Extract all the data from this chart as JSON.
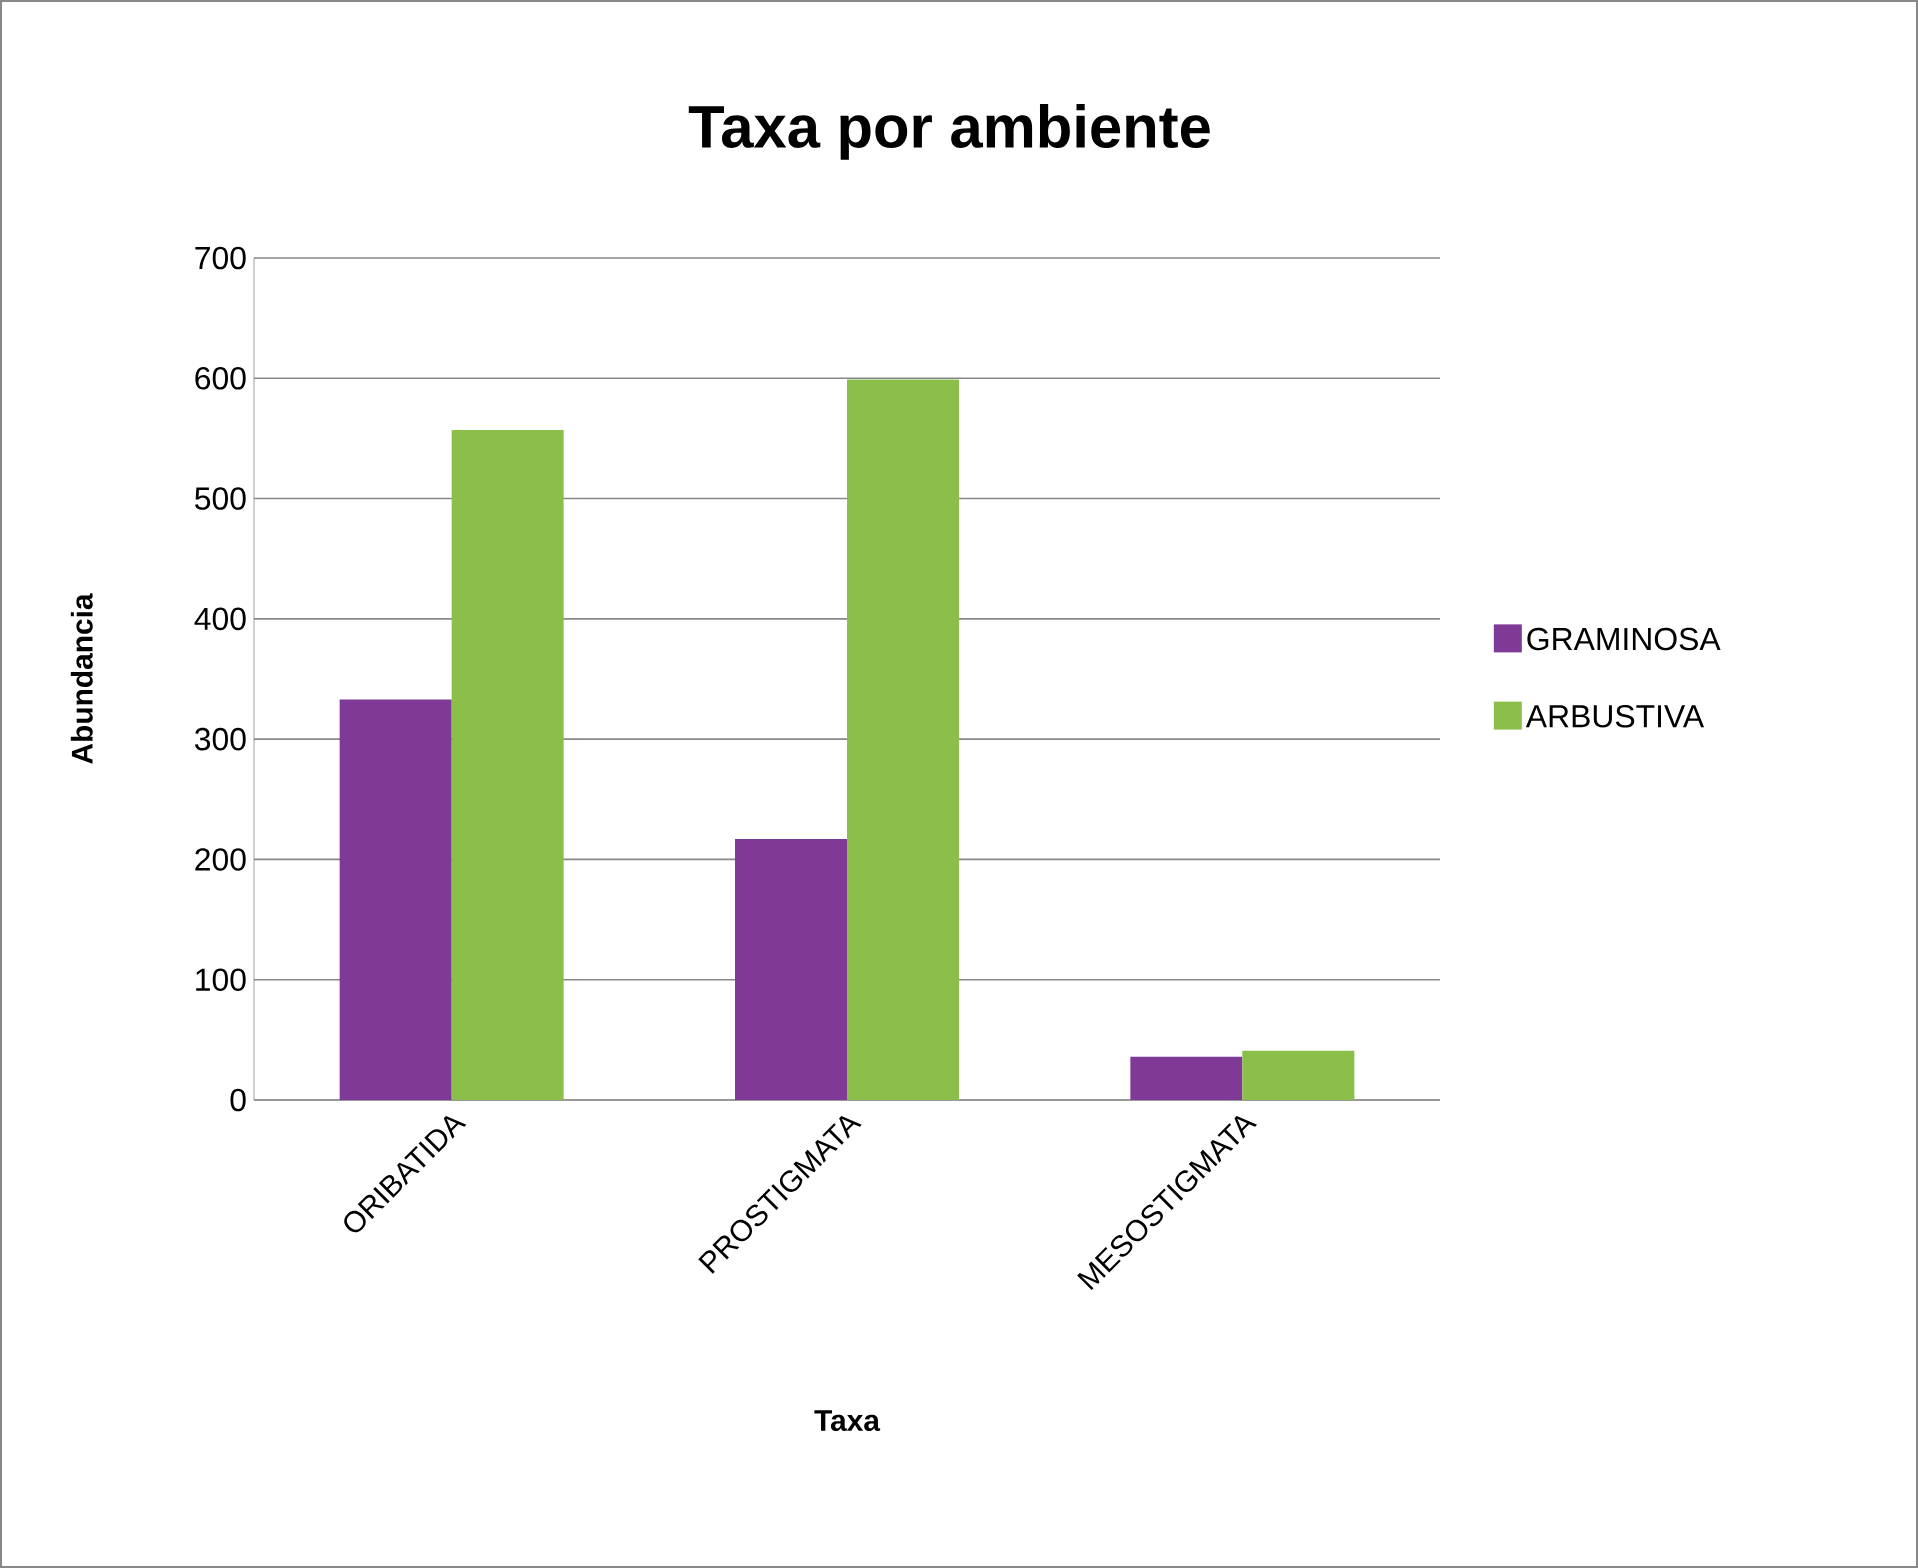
{
  "chart_data": {
    "type": "bar",
    "title": "Taxa por ambiente",
    "xlabel": "Taxa",
    "ylabel": "Abundancia",
    "categories": [
      "ORIBATIDA",
      "PROSTIGMATA",
      "MESOSTIGMATA"
    ],
    "series": [
      {
        "name": "GRAMINOSA",
        "color": "#7e3a96",
        "values": [
          333,
          217,
          36
        ]
      },
      {
        "name": "ARBUSTIVA",
        "color": "#8cbf4a",
        "values": [
          557,
          599,
          41
        ]
      }
    ],
    "ylim": [
      0,
      700
    ],
    "yticks": [
      0,
      100,
      200,
      300,
      400,
      500,
      600,
      700
    ],
    "grid": "y",
    "legend": "right"
  }
}
